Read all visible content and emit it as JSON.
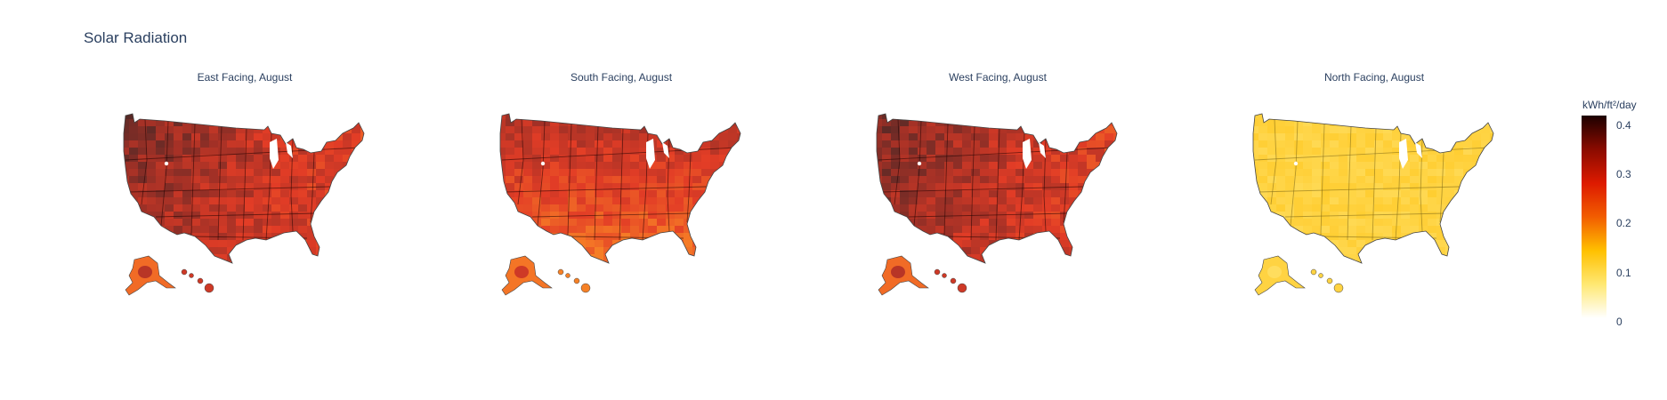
{
  "title": "Solar Radiation",
  "chart_data": {
    "type": "choropleth",
    "region": "USA counties",
    "panels": [
      {
        "title": "East Facing, August",
        "value_range": [
          0.19,
          0.41
        ],
        "dominant": 0.33
      },
      {
        "title": "South Facing, August",
        "value_range": [
          0.18,
          0.38
        ],
        "dominant": 0.3
      },
      {
        "title": "West Facing, August",
        "value_range": [
          0.19,
          0.41
        ],
        "dominant": 0.32
      },
      {
        "title": "North Facing, August",
        "value_range": [
          0.1,
          0.14
        ],
        "dominant": 0.12
      }
    ],
    "colorbar": {
      "title": "kWh/ft²/day",
      "range": [
        0,
        0.42
      ],
      "ticks": [
        "0.4",
        "0.3",
        "0.2",
        "0.1",
        "0"
      ],
      "colorscale": [
        "#ffffff",
        "#ffe873",
        "#ffc000",
        "#f25d00",
        "#dd1a00",
        "#8a0b00",
        "#1c0000"
      ]
    }
  }
}
